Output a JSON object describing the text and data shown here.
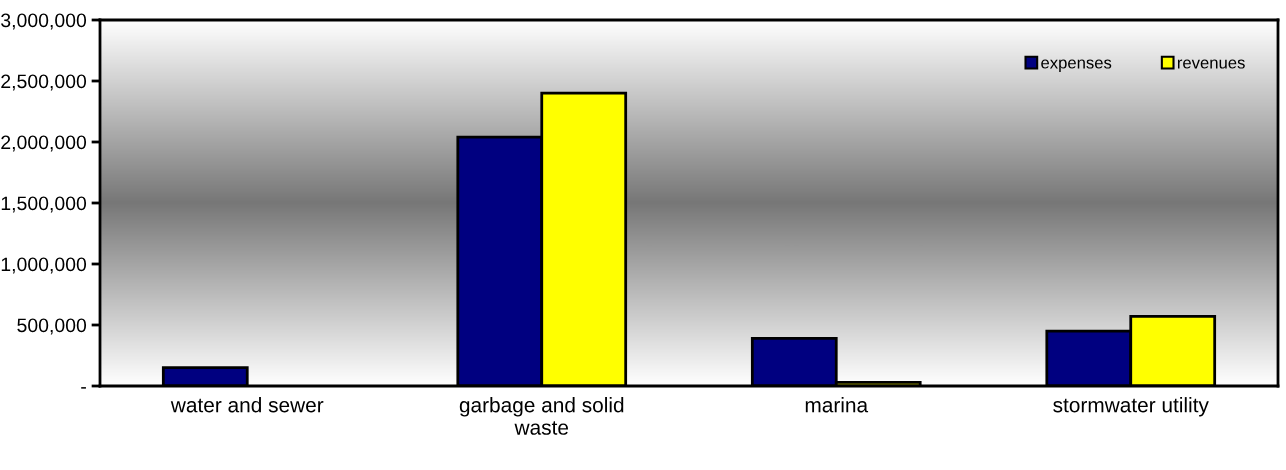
{
  "chart_data": {
    "type": "bar",
    "categories": [
      "water and sewer",
      "garbage and solid waste",
      "marina",
      "stormwater utility"
    ],
    "series": [
      {
        "name": "expenses",
        "color": "#000080",
        "values": [
          150000,
          2040000,
          390000,
          450000
        ]
      },
      {
        "name": "revenues",
        "color": "#ffff00",
        "values": [
          null,
          2400000,
          30000,
          570000
        ]
      }
    ],
    "ylim": [
      0,
      3000000
    ],
    "yticks": [
      {
        "value": 0,
        "label": "-"
      },
      {
        "value": 500000,
        "label": "500,000"
      },
      {
        "value": 1000000,
        "label": "1,000,000"
      },
      {
        "value": 1500000,
        "label": "1,500,000"
      },
      {
        "value": 2000000,
        "label": "2,000,000"
      },
      {
        "value": 2500000,
        "label": "2,500,000"
      },
      {
        "value": 3000000,
        "label": "3,000,000"
      }
    ],
    "grid": false,
    "legend": "top right"
  }
}
